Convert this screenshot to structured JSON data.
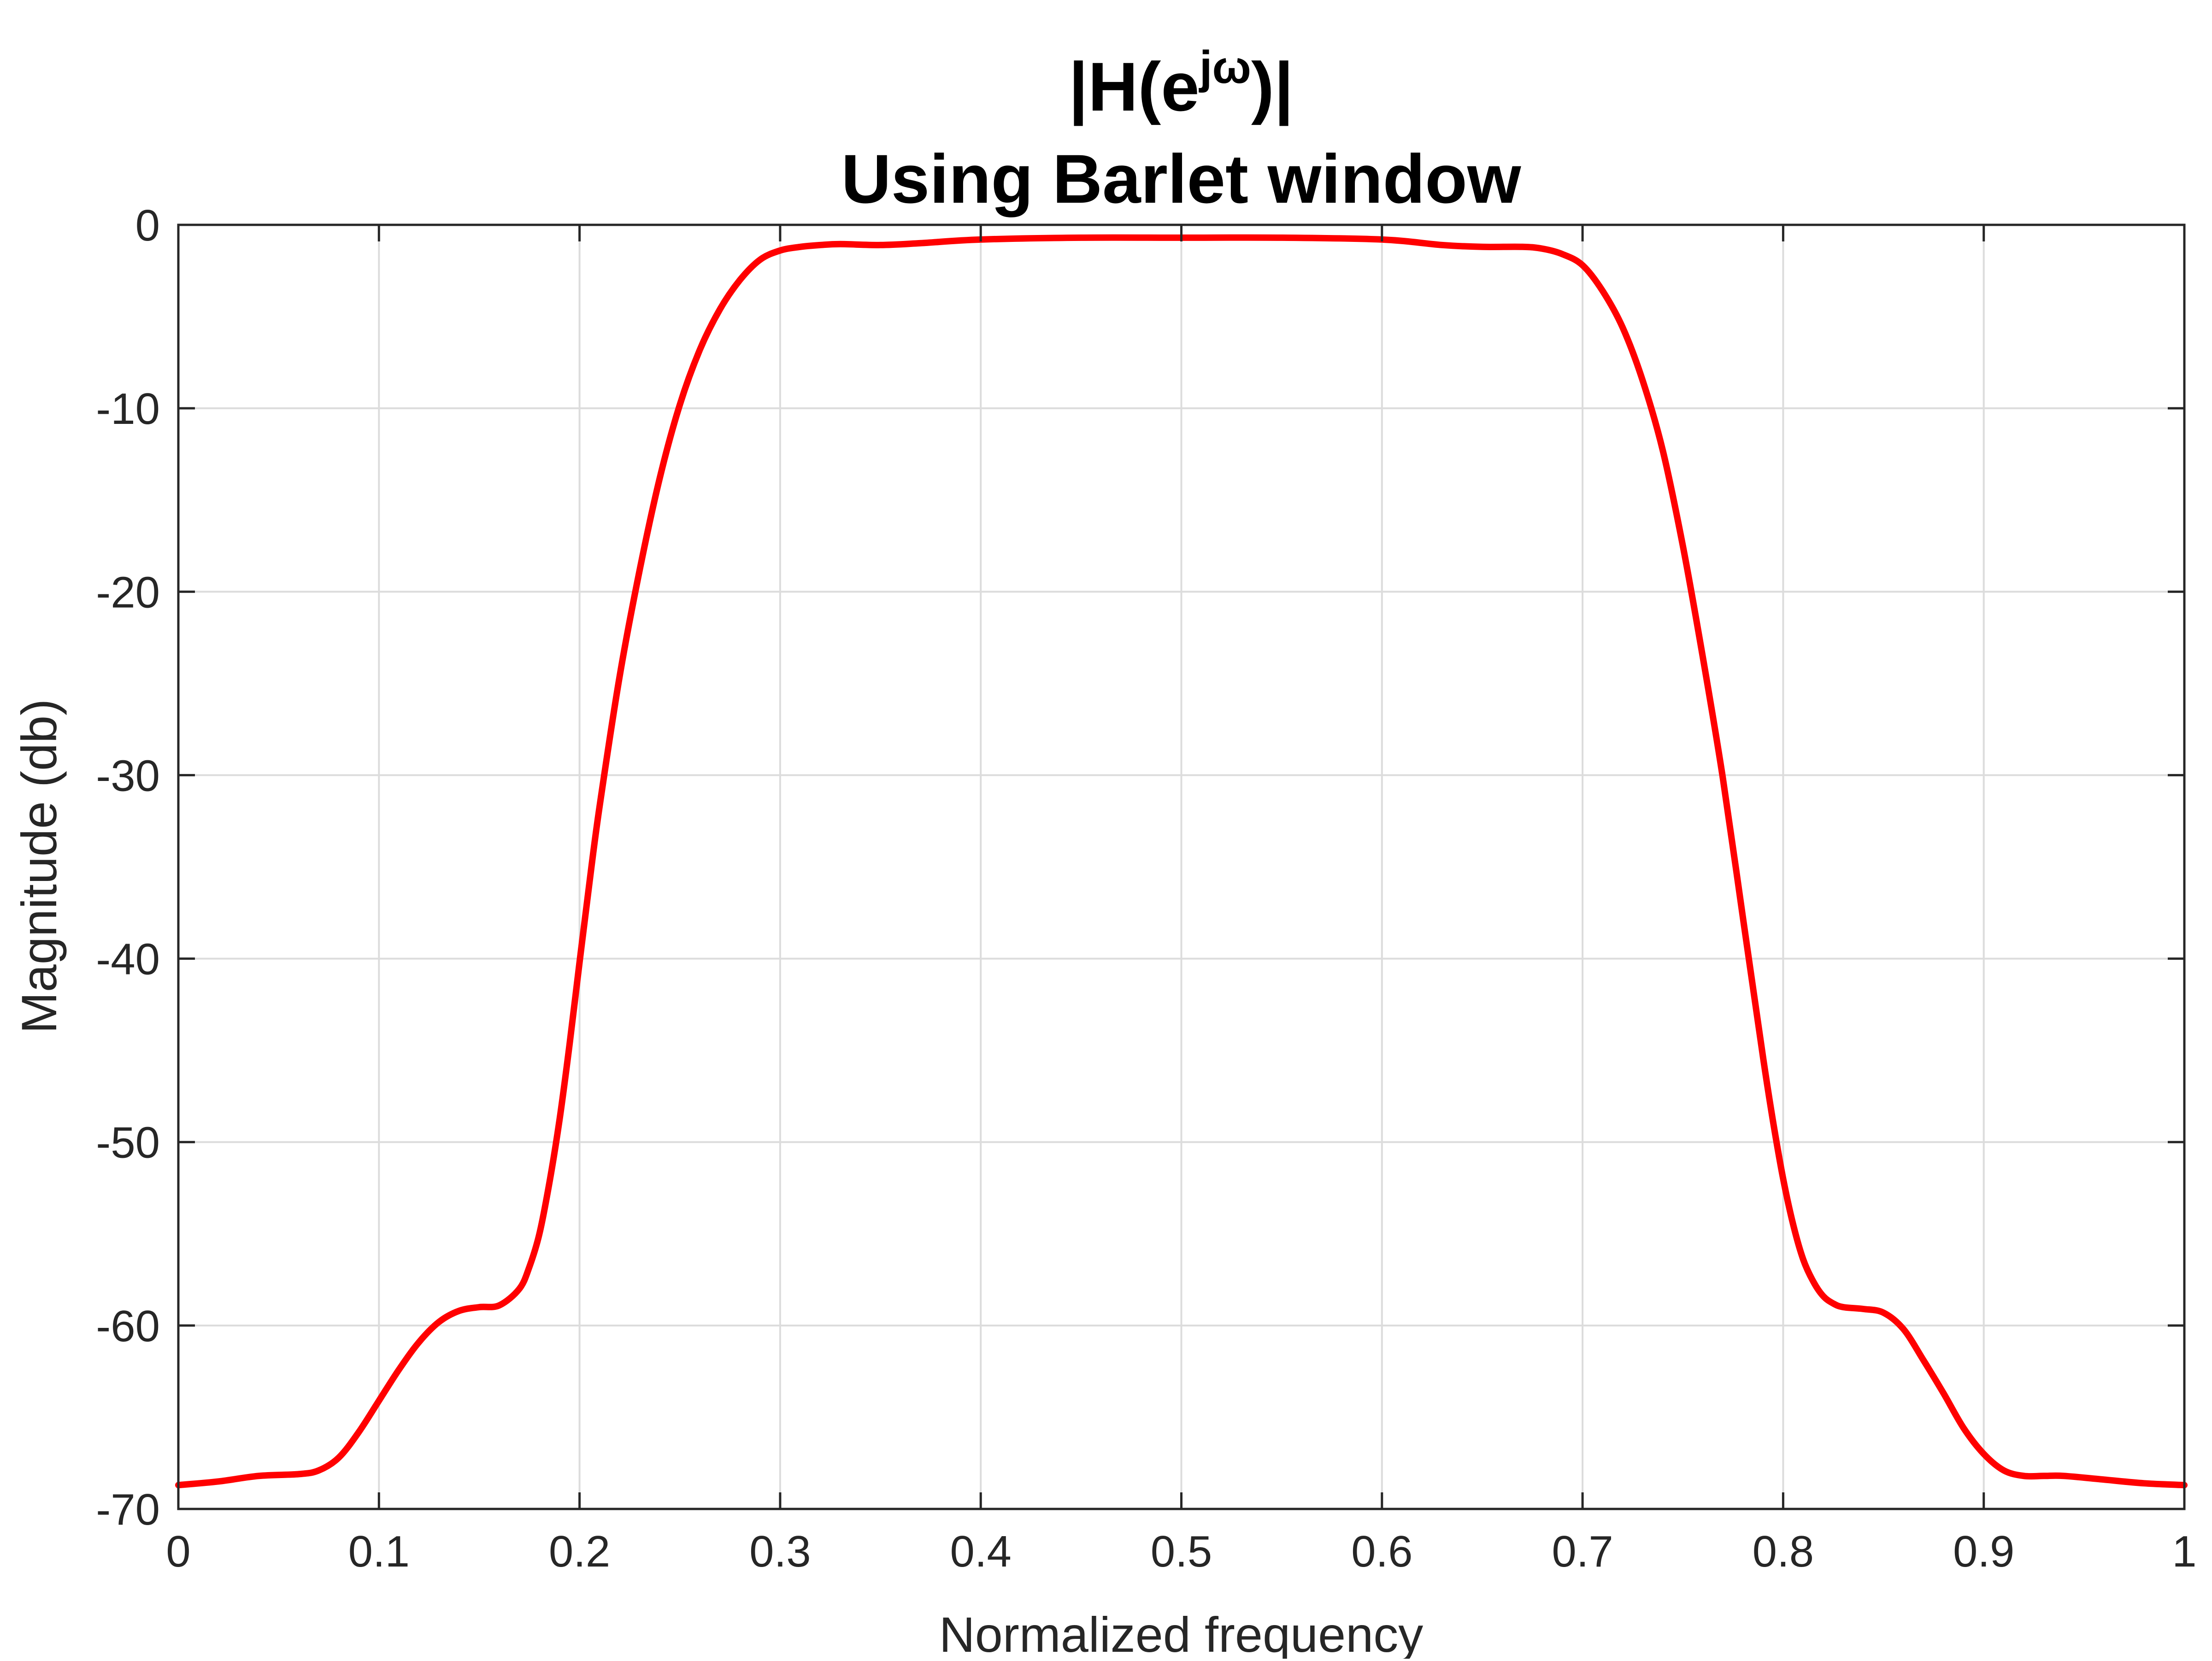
{
  "chart_data": {
    "type": "line",
    "title": {
      "line1_prefix": "|H(e",
      "line1_superscript": "jω",
      "line1_suffix": ")|",
      "line2": "Using Barlet window"
    },
    "xlabel": "Normalized frequency",
    "ylabel": "Magnitude (db)",
    "xlim": [
      0,
      1
    ],
    "ylim": [
      -70,
      0
    ],
    "xticks": [
      "0",
      "0.1",
      "0.2",
      "0.3",
      "0.4",
      "0.5",
      "0.6",
      "0.7",
      "0.8",
      "0.9",
      "1"
    ],
    "yticks": [
      "0",
      "-10",
      "-20",
      "-30",
      "-40",
      "-50",
      "-60",
      "-70"
    ],
    "grid": true,
    "legend": "none",
    "series": [
      {
        "color": "#ff0000",
        "x": [
          0,
          0.02,
          0.04,
          0.06,
          0.07,
          0.08,
          0.09,
          0.1,
          0.11,
          0.12,
          0.13,
          0.14,
          0.15,
          0.16,
          0.17,
          0.175,
          0.18,
          0.185,
          0.19,
          0.195,
          0.2,
          0.205,
          0.21,
          0.22,
          0.23,
          0.24,
          0.25,
          0.26,
          0.27,
          0.28,
          0.29,
          0.3,
          0.31,
          0.32,
          0.33,
          0.35,
          0.37,
          0.4,
          0.45,
          0.5,
          0.55,
          0.6,
          0.63,
          0.65,
          0.67,
          0.68,
          0.69,
          0.7,
          0.71,
          0.72,
          0.73,
          0.74,
          0.75,
          0.76,
          0.77,
          0.78,
          0.79,
          0.795,
          0.8,
          0.805,
          0.81,
          0.815,
          0.82,
          0.825,
          0.83,
          0.84,
          0.85,
          0.86,
          0.87,
          0.88,
          0.89,
          0.9,
          0.91,
          0.92,
          0.93,
          0.94,
          0.96,
          0.98,
          1.0
        ],
        "y": [
          -68.7,
          -68.5,
          -68.2,
          -68.1,
          -67.9,
          -67.2,
          -65.8,
          -64.1,
          -62.4,
          -60.9,
          -59.8,
          -59.2,
          -59.0,
          -58.9,
          -58.0,
          -56.8,
          -55.0,
          -52.2,
          -48.8,
          -44.7,
          -40.2,
          -35.8,
          -31.7,
          -24.6,
          -18.8,
          -13.8,
          -9.8,
          -6.8,
          -4.6,
          -3.0,
          -1.9,
          -1.4,
          -1.2,
          -1.1,
          -1.05,
          -1.1,
          -1.0,
          -0.8,
          -0.7,
          -0.7,
          -0.7,
          -0.8,
          -1.1,
          -1.2,
          -1.2,
          -1.3,
          -1.6,
          -2.2,
          -3.6,
          -5.6,
          -8.5,
          -12.3,
          -17.5,
          -23.6,
          -30.2,
          -37.8,
          -45.4,
          -48.9,
          -52.0,
          -54.5,
          -56.4,
          -57.6,
          -58.4,
          -58.8,
          -59.0,
          -59.1,
          -59.3,
          -60.2,
          -61.9,
          -63.7,
          -65.6,
          -67.0,
          -67.9,
          -68.2,
          -68.2,
          -68.2,
          -68.4,
          -68.6,
          -68.7
        ]
      }
    ]
  }
}
